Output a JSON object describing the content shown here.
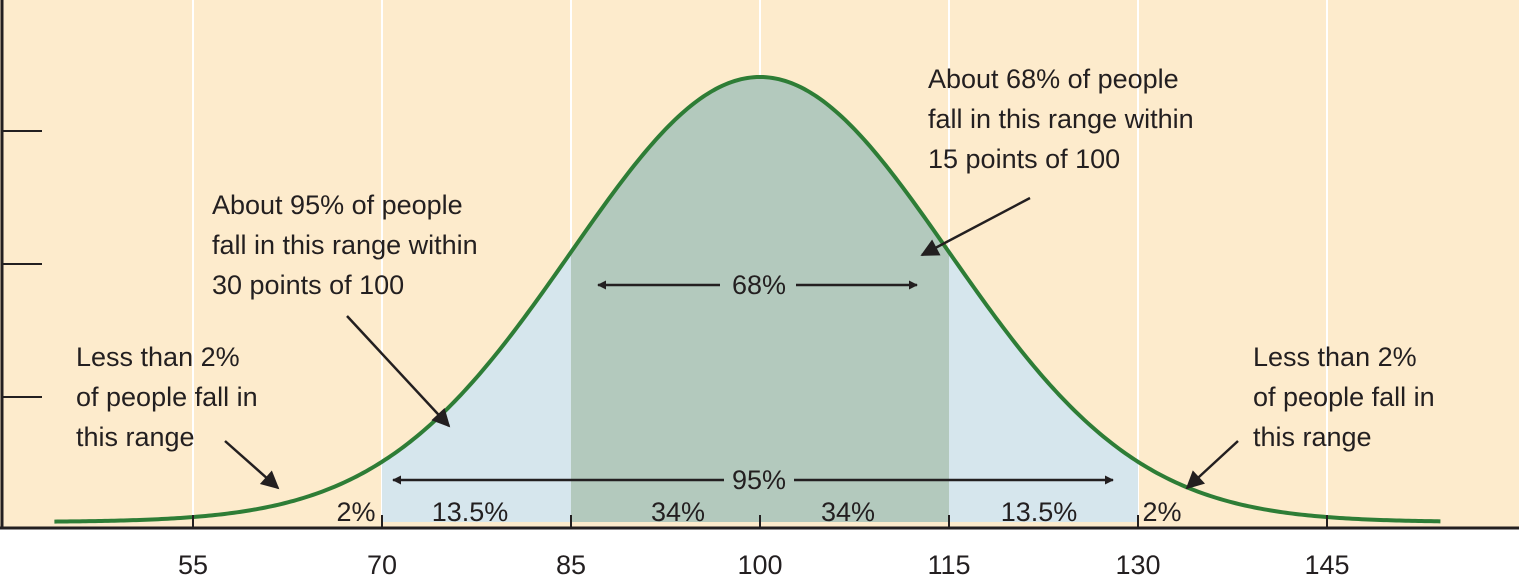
{
  "colors": {
    "background": "#fdebcc",
    "curve": "#2e7d36",
    "band_68": "#b3c9bd",
    "band_95": "#d6e6ed",
    "gridline": "#ffffff",
    "axis": "#231f20",
    "text": "#231f20"
  },
  "chart_data": {
    "type": "area",
    "distribution": "normal",
    "mean": 100,
    "sd": 15,
    "xlim": [
      44,
      154
    ],
    "x_ticks": [
      55,
      70,
      85,
      100,
      115,
      130,
      145
    ],
    "x_tick_labels": [
      "55",
      "70",
      "85",
      "100",
      "115",
      "130",
      "145"
    ],
    "grid": true,
    "bands": [
      {
        "from": 85,
        "to": 115,
        "label": "68%"
      },
      {
        "from": 70,
        "to": 130,
        "label": "95%"
      }
    ],
    "segments": [
      {
        "from": 44,
        "to": 70,
        "label": "2%"
      },
      {
        "from": 70,
        "to": 85,
        "label": "13.5%"
      },
      {
        "from": 85,
        "to": 100,
        "label": "34%"
      },
      {
        "from": 100,
        "to": 115,
        "label": "34%"
      },
      {
        "from": 115,
        "to": 130,
        "label": "13.5%"
      },
      {
        "from": 130,
        "to": 154,
        "label": "2%"
      }
    ],
    "annotations": [
      {
        "id": "ann-68",
        "lines": [
          "About 68% of people",
          "fall in this range within",
          "15 points of 100"
        ]
      },
      {
        "id": "ann-95",
        "lines": [
          "About 95% of people",
          "fall in this range within",
          "30 points of 100"
        ]
      },
      {
        "id": "ann-left-tail",
        "lines": [
          "Less than 2%",
          "of people fall in",
          "this range"
        ]
      },
      {
        "id": "ann-right-tail",
        "lines": [
          "Less than 2%",
          "of people fall in",
          "this range"
        ]
      }
    ]
  }
}
